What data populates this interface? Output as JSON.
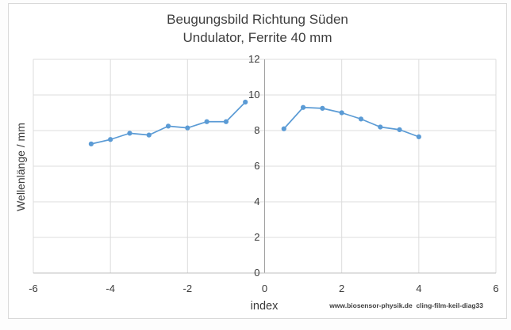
{
  "chart_data": {
    "type": "line",
    "title": "Beugungsbild Richtung Süden",
    "subtitle": "Undulator, Ferrite 40 mm",
    "xlabel": "index",
    "ylabel": "Wellenlänge / mm",
    "watermark": "www.biosensor-physik.de  cling-film-keil-diag33",
    "xlim": [
      -6,
      6
    ],
    "ylim": [
      0,
      12
    ],
    "x_ticks": [
      -6,
      -4,
      -2,
      0,
      2,
      4,
      6
    ],
    "y_ticks": [
      0,
      2,
      4,
      6,
      8,
      10,
      12
    ],
    "grid": true,
    "legend": "none",
    "marker": "circle",
    "line_color": "#5B9BD5",
    "series": [
      {
        "points": [
          [
            -4.5,
            7.25
          ],
          [
            -4,
            7.5
          ],
          [
            -3.5,
            7.85
          ],
          [
            -3,
            7.75
          ],
          [
            -2.5,
            8.25
          ],
          [
            -2,
            8.15
          ],
          [
            -1.5,
            8.5
          ],
          [
            -1,
            8.5
          ],
          [
            -0.5,
            9.6
          ]
        ]
      },
      {
        "points": [
          [
            0.5,
            8.1
          ],
          [
            1,
            9.3
          ],
          [
            1.5,
            9.25
          ],
          [
            2,
            9.0
          ],
          [
            2.5,
            8.65
          ],
          [
            3,
            8.2
          ],
          [
            3.5,
            8.05
          ],
          [
            4,
            7.65
          ]
        ]
      }
    ]
  },
  "colors": {
    "gridline": "#dcdcdc",
    "y_axis_line": "#a0a0a0",
    "x_axis_line": "#bfbfbf",
    "tick_text": "#3a3a3a",
    "chart_border": "#d9d9d9"
  }
}
